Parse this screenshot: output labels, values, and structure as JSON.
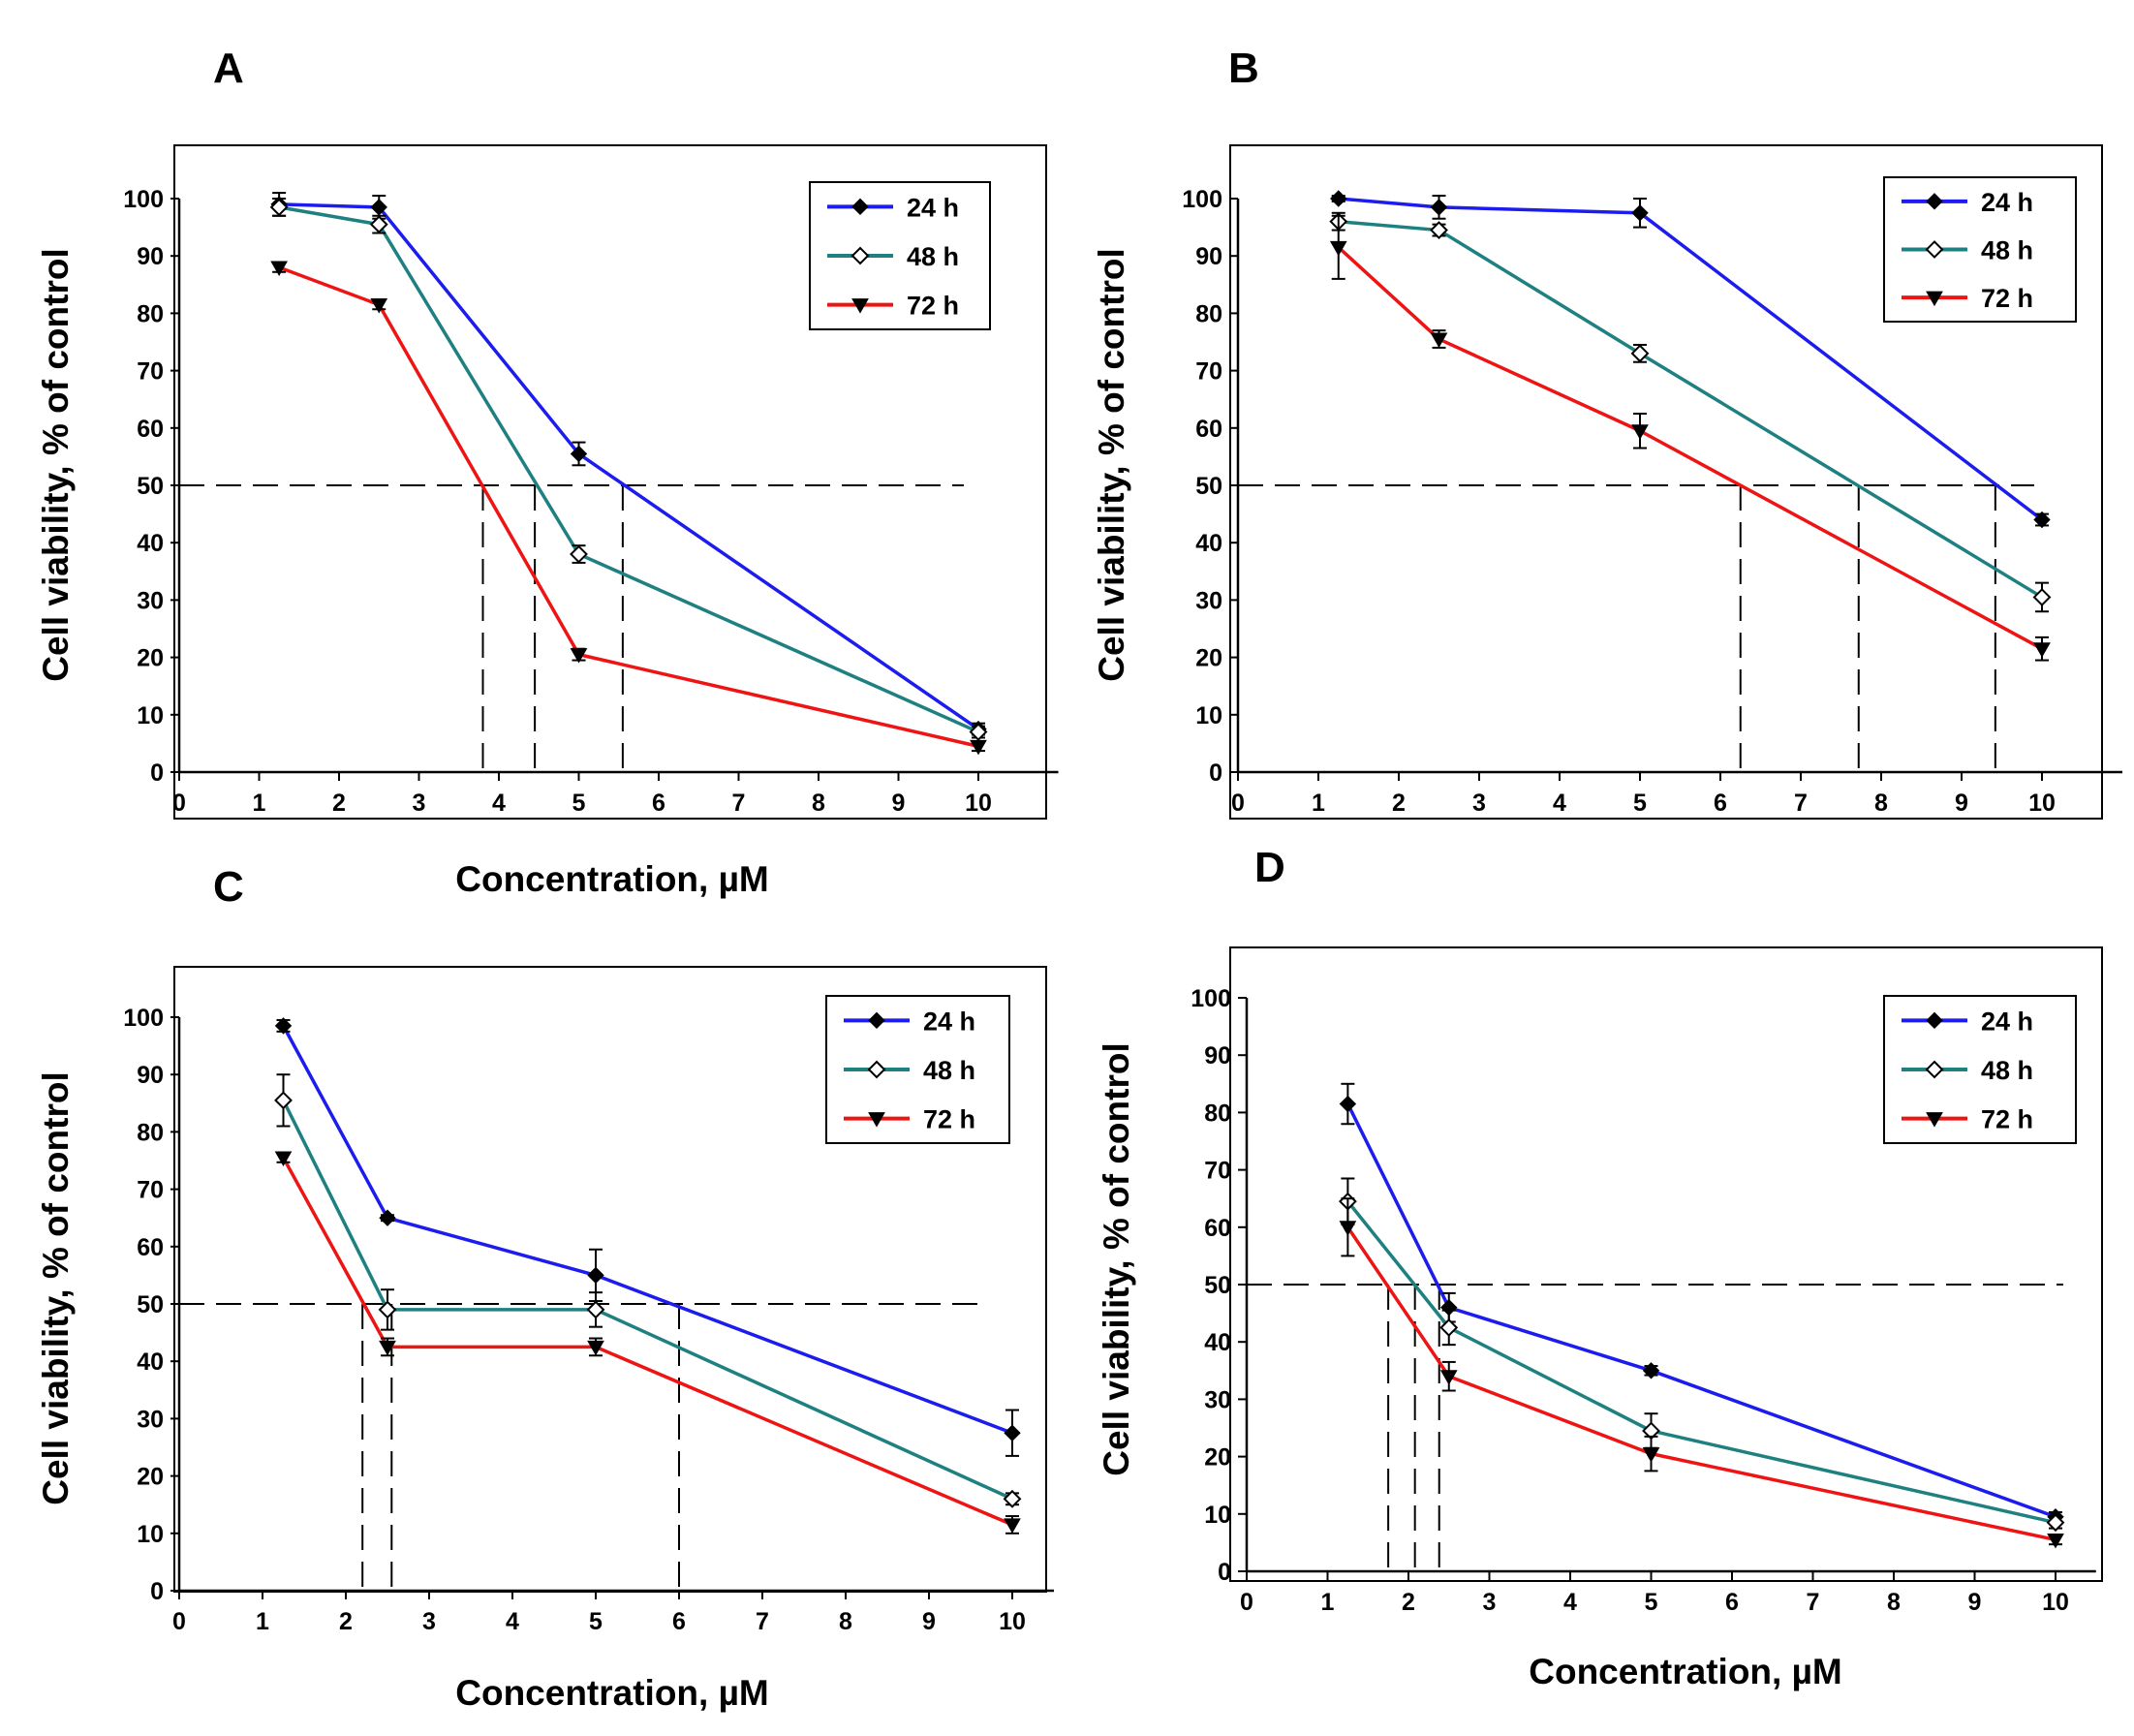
{
  "figure": {
    "panel_labels": [
      "A",
      "B",
      "C",
      "D"
    ]
  },
  "colors": {
    "24 h": "#1c1cee",
    "48 h": "#1e8080",
    "72 h": "#ee1414",
    "axis": "#000000",
    "guide": "#000000"
  },
  "chart_data": [
    {
      "type": "line",
      "panel": "A",
      "xlabel": "Concentration, µM",
      "ylabel": "Cell viability, % of control",
      "xlim": [
        0,
        11
      ],
      "ylim": [
        0,
        100
      ],
      "xticks": [
        "0",
        "1",
        "2",
        "3",
        "4",
        "5",
        "6",
        "7",
        "8",
        "9",
        "10"
      ],
      "yticks": [
        "0",
        "10",
        "20",
        "30",
        "40",
        "50",
        "60",
        "70",
        "80",
        "90",
        "100"
      ],
      "x": [
        1.25,
        2.5,
        5,
        10
      ],
      "series": [
        {
          "name": "24 h",
          "marker": "diamond-filled",
          "values": [
            99,
            98.5,
            55.5,
            7.5
          ],
          "errors": [
            2,
            2,
            2,
            1
          ]
        },
        {
          "name": "48 h",
          "marker": "diamond-open",
          "values": [
            98.5,
            95.5,
            38,
            7
          ],
          "errors": [
            1.5,
            1.5,
            1.5,
            1
          ]
        },
        {
          "name": "72 h",
          "marker": "triangle-down",
          "values": [
            88,
            81.5,
            20.5,
            4.5
          ],
          "errors": [
            0.8,
            0.8,
            1,
            0.8
          ]
        }
      ],
      "reference_line_y": 50,
      "ic50_x": [
        3.8,
        4.45,
        5.55
      ]
    },
    {
      "type": "line",
      "panel": "B",
      "xlabel": "",
      "ylabel": "Cell viability, % of control",
      "xlim": [
        0,
        11
      ],
      "ylim": [
        0,
        100
      ],
      "xticks": [
        "0",
        "1",
        "2",
        "3",
        "4",
        "5",
        "6",
        "7",
        "8",
        "9",
        "10"
      ],
      "yticks": [
        "0",
        "10",
        "20",
        "30",
        "40",
        "50",
        "60",
        "70",
        "80",
        "90",
        "100"
      ],
      "x": [
        1.25,
        2.5,
        5,
        10
      ],
      "series": [
        {
          "name": "24 h",
          "marker": "diamond-filled",
          "values": [
            100,
            98.5,
            97.5,
            44
          ],
          "errors": [
            0.5,
            2,
            2.5,
            1
          ]
        },
        {
          "name": "48 h",
          "marker": "diamond-open",
          "values": [
            96,
            94.5,
            73,
            30.5
          ],
          "errors": [
            1.5,
            1,
            1.5,
            2.5
          ]
        },
        {
          "name": "72 h",
          "marker": "triangle-down",
          "values": [
            91.5,
            75.5,
            59.5,
            21.5
          ],
          "errors": [
            5.5,
            1.5,
            3,
            2
          ]
        }
      ],
      "reference_line_y": 50,
      "ic50_x": [
        6.25,
        7.72,
        9.42
      ]
    },
    {
      "type": "line",
      "panel": "C",
      "xlabel": "Concentration, µM",
      "ylabel": "Cell viability, % of control",
      "xlim": [
        0,
        10.5
      ],
      "ylim": [
        0,
        100
      ],
      "xticks": [
        "0",
        "1",
        "2",
        "3",
        "4",
        "5",
        "6",
        "7",
        "8",
        "9",
        "10"
      ],
      "yticks": [
        "0",
        "10",
        "20",
        "30",
        "40",
        "50",
        "60",
        "70",
        "80",
        "90",
        "100"
      ],
      "x": [
        1.25,
        2.5,
        5,
        10
      ],
      "series": [
        {
          "name": "24 h",
          "marker": "diamond-filled",
          "values": [
            98.5,
            65,
            55,
            27.5
          ],
          "errors": [
            1,
            0.5,
            4.5,
            4
          ]
        },
        {
          "name": "48 h",
          "marker": "diamond-open",
          "values": [
            85.5,
            49,
            49,
            16
          ],
          "errors": [
            4.5,
            3.5,
            3,
            1
          ]
        },
        {
          "name": "72 h",
          "marker": "triangle-down",
          "values": [
            75.5,
            42.5,
            42.5,
            11.5
          ],
          "errors": [
            0.8,
            1.5,
            1.5,
            1.5
          ]
        }
      ],
      "reference_line_y": 50,
      "ic50_x": [
        2.2,
        2.55,
        6.0
      ]
    },
    {
      "type": "line",
      "panel": "D",
      "xlabel": "Concentration, µM",
      "ylabel": "Cell viability, % of control",
      "xlim": [
        0,
        10.5
      ],
      "ylim": [
        0,
        100
      ],
      "xticks": [
        "0",
        "1",
        "2",
        "3",
        "4",
        "5",
        "6",
        "7",
        "8",
        "9",
        "10"
      ],
      "yticks": [
        "0",
        "10",
        "20",
        "30",
        "40",
        "50",
        "60",
        "70",
        "80",
        "90",
        "100"
      ],
      "x": [
        1.25,
        2.5,
        5,
        10
      ],
      "series": [
        {
          "name": "24 h",
          "marker": "diamond-filled",
          "values": [
            81.5,
            46,
            35,
            9.5
          ],
          "errors": [
            3.5,
            2.5,
            0.8,
            0.8
          ]
        },
        {
          "name": "48 h",
          "marker": "diamond-open",
          "values": [
            64.5,
            42.5,
            24.5,
            8.5
          ],
          "errors": [
            4,
            3,
            3,
            1
          ]
        },
        {
          "name": "72 h",
          "marker": "triangle-down",
          "values": [
            60,
            34,
            20.5,
            5.5
          ],
          "errors": [
            5,
            2.5,
            3,
            0.8
          ]
        }
      ],
      "reference_line_y": 50,
      "ic50_x": [
        1.75,
        2.08,
        2.38
      ]
    }
  ]
}
